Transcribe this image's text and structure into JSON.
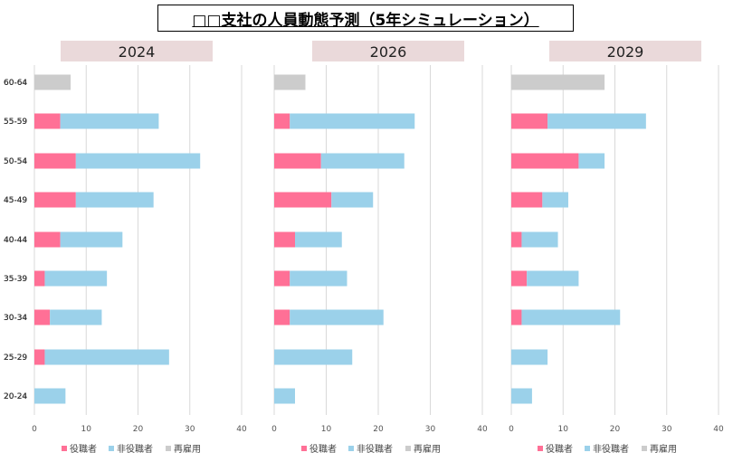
{
  "title": "□□支社の人員動態予測（5年シミュレーション）",
  "chart_data": [
    {
      "type": "bar",
      "orientation": "horizontal",
      "stacked": true,
      "title": "2024",
      "categories": [
        "60-64",
        "55-59",
        "50-54",
        "45-49",
        "40-44",
        "35-39",
        "30-34",
        "25-29",
        "20-24"
      ],
      "series": [
        {
          "name": "役職者",
          "color": "#ff7096",
          "values": [
            0,
            5,
            8,
            8,
            5,
            2,
            3,
            2,
            0
          ]
        },
        {
          "name": "非役職者",
          "color": "#9bd1ea",
          "values": [
            0,
            19,
            24,
            15,
            12,
            12,
            10,
            24,
            6
          ]
        },
        {
          "name": "再雇用",
          "color": "#cccccc",
          "values": [
            7,
            0,
            0,
            0,
            0,
            0,
            0,
            0,
            0
          ]
        }
      ],
      "xlim": [
        0,
        40
      ],
      "xticks": [
        "0",
        "10",
        "20",
        "30",
        "40"
      ],
      "grid": true,
      "legend": "bottom"
    },
    {
      "type": "bar",
      "orientation": "horizontal",
      "stacked": true,
      "title": "2026",
      "categories": [
        "60-64",
        "55-59",
        "50-54",
        "45-49",
        "40-44",
        "35-39",
        "30-34",
        "25-29",
        "20-24"
      ],
      "series": [
        {
          "name": "役職者",
          "color": "#ff7096",
          "values": [
            0,
            3,
            9,
            11,
            4,
            3,
            3,
            0,
            0
          ]
        },
        {
          "name": "非役職者",
          "color": "#9bd1ea",
          "values": [
            0,
            24,
            16,
            8,
            9,
            11,
            18,
            15,
            4
          ]
        },
        {
          "name": "再雇用",
          "color": "#cccccc",
          "values": [
            6,
            0,
            0,
            0,
            0,
            0,
            0,
            0,
            0
          ]
        }
      ],
      "xlim": [
        0,
        40
      ],
      "xticks": [
        "0",
        "10",
        "20",
        "30",
        "40"
      ],
      "grid": true,
      "legend": "bottom"
    },
    {
      "type": "bar",
      "orientation": "horizontal",
      "stacked": true,
      "title": "2029",
      "categories": [
        "60-64",
        "55-59",
        "50-54",
        "45-49",
        "40-44",
        "35-39",
        "30-34",
        "25-29",
        "20-24"
      ],
      "series": [
        {
          "name": "役職者",
          "color": "#ff7096",
          "values": [
            0,
            7,
            13,
            6,
            2,
            3,
            2,
            0,
            0
          ]
        },
        {
          "name": "非役職者",
          "color": "#9bd1ea",
          "values": [
            0,
            19,
            5,
            5,
            7,
            10,
            19,
            7,
            4
          ]
        },
        {
          "name": "再雇用",
          "color": "#cccccc",
          "values": [
            18,
            0,
            0,
            0,
            0,
            0,
            0,
            0,
            0
          ]
        }
      ],
      "xlim": [
        0,
        40
      ],
      "xticks": [
        "0",
        "10",
        "20",
        "30",
        "40"
      ],
      "grid": true,
      "legend": "bottom"
    }
  ]
}
